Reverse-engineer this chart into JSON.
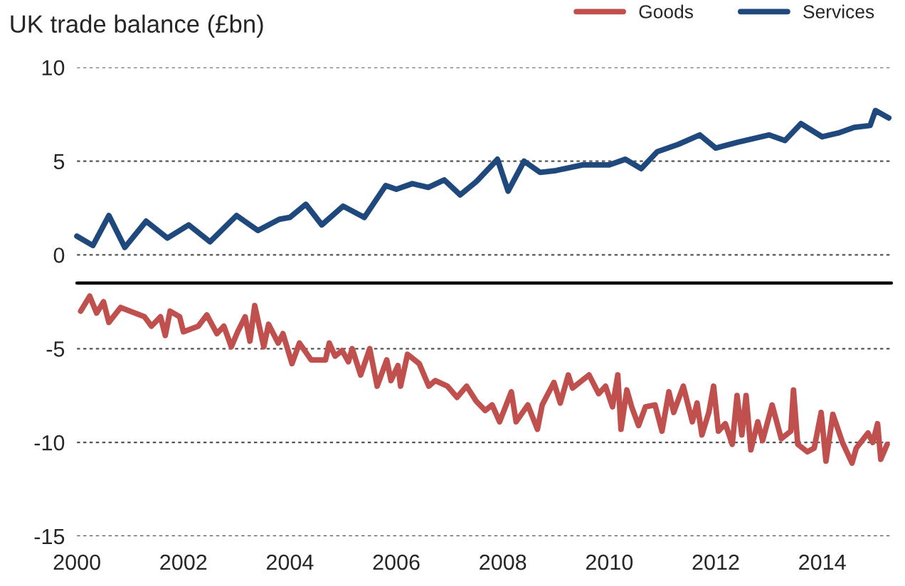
{
  "chart_data": {
    "type": "line",
    "title": "UK trade balance (£bn)",
    "xlim": [
      2000,
      2015.3
    ],
    "xticks": [
      2000,
      2002,
      2004,
      2006,
      2008,
      2010,
      2012,
      2014
    ],
    "ylim": [
      -15,
      10
    ],
    "yticks": [
      -15,
      -10,
      -5,
      0,
      5,
      10
    ],
    "grid": "y",
    "legend": "top right",
    "ref_lines": [
      {
        "axis": "y",
        "value": -1.5,
        "color": "#000000"
      }
    ],
    "series": [
      {
        "name": "Goods",
        "color": "#c0504d",
        "x": [
          2000.07,
          2000.24,
          2000.37,
          2000.5,
          2000.6,
          2000.82,
          2001.27,
          2001.4,
          2001.57,
          2001.66,
          2001.75,
          2001.93,
          2002.0,
          2002.28,
          2002.44,
          2002.63,
          2002.76,
          2002.9,
          2003.02,
          2003.16,
          2003.25,
          2003.34,
          2003.51,
          2003.6,
          2003.78,
          2003.87,
          2004.04,
          2004.18,
          2004.4,
          2004.67,
          2004.74,
          2004.85,
          2004.98,
          2005.1,
          2005.17,
          2005.33,
          2005.5,
          2005.64,
          2005.82,
          2005.9,
          2006.03,
          2006.08,
          2006.21,
          2006.43,
          2006.61,
          2006.73,
          2006.96,
          2007.14,
          2007.32,
          2007.5,
          2007.67,
          2007.8,
          2007.94,
          2008.16,
          2008.25,
          2008.47,
          2008.65,
          2008.74,
          2008.96,
          2009.08,
          2009.23,
          2009.31,
          2009.62,
          2009.8,
          2009.93,
          2010.06,
          2010.16,
          2010.22,
          2010.33,
          2010.42,
          2010.55,
          2010.68,
          2010.86,
          2010.99,
          2011.12,
          2011.21,
          2011.39,
          2011.56,
          2011.65,
          2011.74,
          2011.87,
          2011.96,
          2012.05,
          2012.18,
          2012.31,
          2012.4,
          2012.49,
          2012.57,
          2012.66,
          2012.79,
          2012.88,
          2013.06,
          2013.23,
          2013.41,
          2013.46,
          2013.54,
          2013.72,
          2013.85,
          2013.98,
          2014.07,
          2014.2,
          2014.38,
          2014.56,
          2014.64,
          2014.86,
          2014.95,
          2015.04,
          2015.1,
          2015.22
        ],
        "values": [
          -3.0,
          -2.2,
          -3.1,
          -2.5,
          -3.6,
          -2.8,
          -3.3,
          -3.8,
          -3.3,
          -4.3,
          -3.0,
          -3.3,
          -4.1,
          -3.8,
          -3.2,
          -4.2,
          -3.8,
          -4.9,
          -4.1,
          -3.3,
          -4.6,
          -2.7,
          -4.9,
          -3.7,
          -4.7,
          -4.2,
          -5.8,
          -4.7,
          -5.6,
          -5.6,
          -4.7,
          -5.4,
          -5.1,
          -5.7,
          -5.0,
          -6.4,
          -5.0,
          -7.0,
          -5.6,
          -6.7,
          -5.9,
          -7.0,
          -5.3,
          -5.8,
          -7.0,
          -6.7,
          -7.0,
          -7.6,
          -7.0,
          -7.8,
          -8.3,
          -8.0,
          -8.9,
          -7.3,
          -8.9,
          -8.0,
          -9.3,
          -8.0,
          -6.8,
          -7.9,
          -6.4,
          -7.1,
          -6.4,
          -7.4,
          -7.0,
          -8.1,
          -6.4,
          -9.3,
          -7.2,
          -8.1,
          -9.1,
          -8.1,
          -8.0,
          -9.4,
          -7.3,
          -8.4,
          -7.0,
          -8.9,
          -7.9,
          -9.6,
          -8.4,
          -7.0,
          -9.4,
          -9.0,
          -10.1,
          -7.5,
          -9.6,
          -7.5,
          -10.4,
          -8.9,
          -9.9,
          -8.0,
          -9.8,
          -9.4,
          -7.2,
          -10.1,
          -10.5,
          -10.3,
          -8.4,
          -11.0,
          -8.5,
          -10.0,
          -11.1,
          -10.3,
          -9.5,
          -10.0,
          -9.0,
          -10.9,
          -10.1
        ]
      },
      {
        "name": "Services",
        "color": "#1f497d",
        "x": [
          2000.0,
          2000.3,
          2000.6,
          2000.9,
          2001.3,
          2001.7,
          2002.1,
          2002.5,
          2003.0,
          2003.4,
          2003.8,
          2004.0,
          2004.3,
          2004.6,
          2005.0,
          2005.4,
          2005.8,
          2006.0,
          2006.3,
          2006.6,
          2006.9,
          2007.2,
          2007.5,
          2007.9,
          2008.1,
          2008.4,
          2008.7,
          2009.0,
          2009.5,
          2010.0,
          2010.3,
          2010.6,
          2010.9,
          2011.3,
          2011.7,
          2012.0,
          2012.4,
          2012.7,
          2013.0,
          2013.3,
          2013.6,
          2014.0,
          2014.3,
          2014.6,
          2014.9,
          2015.0,
          2015.25
        ],
        "values": [
          1.0,
          0.5,
          2.1,
          0.4,
          1.8,
          0.9,
          1.6,
          0.7,
          2.1,
          1.3,
          1.9,
          2.0,
          2.7,
          1.6,
          2.6,
          2.0,
          3.7,
          3.5,
          3.8,
          3.6,
          4.0,
          3.2,
          3.9,
          5.1,
          3.4,
          5.0,
          4.4,
          4.5,
          4.8,
          4.8,
          5.1,
          4.6,
          5.5,
          5.9,
          6.4,
          5.7,
          6.0,
          6.2,
          6.4,
          6.1,
          7.0,
          6.3,
          6.5,
          6.8,
          6.9,
          7.7,
          7.3
        ]
      }
    ]
  }
}
